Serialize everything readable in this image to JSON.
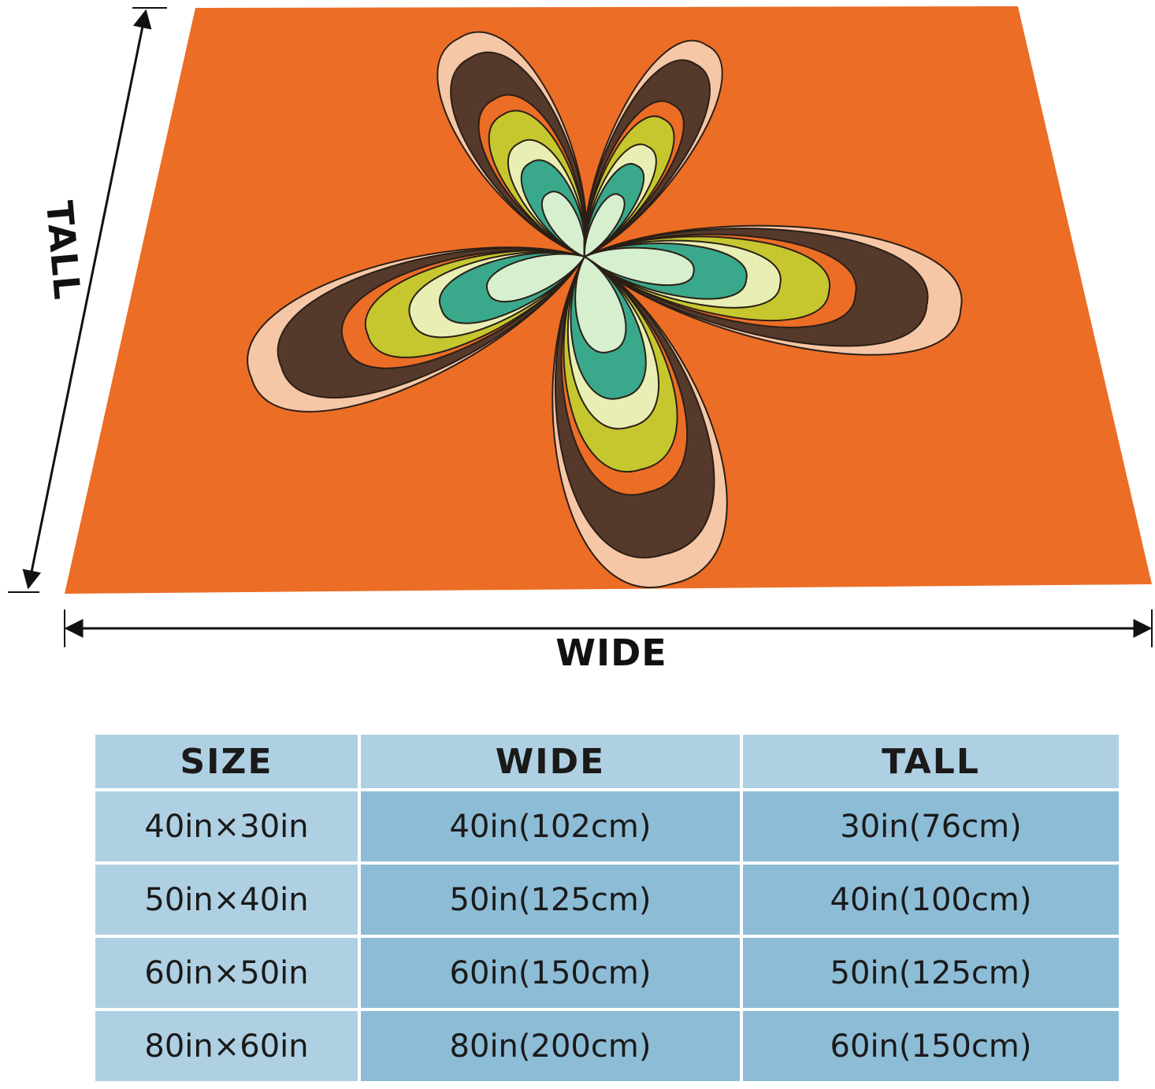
{
  "product": {
    "colors": {
      "background": "#ec6d26",
      "outline": "#2a1f17",
      "ring_peach": "#f6c7a6",
      "ring_brown": "#55392b",
      "ring_olive": "#c6c72f",
      "ring_pale_yellow": "#e9efb4",
      "ring_teal": "#3aa88b",
      "ring_mint": "#d6efcf"
    },
    "motif": "five-petal retro flower",
    "icon": "flower-icon"
  },
  "dimensions": {
    "wide_label": "WIDE",
    "tall_label": "TALL"
  },
  "size_table": {
    "headers": [
      "SIZE",
      "WIDE",
      "TALL"
    ],
    "rows": [
      [
        "40in×30in",
        "40in(102cm)",
        "30in(76cm)"
      ],
      [
        "50in×40in",
        "50in(125cm)",
        "40in(100cm)"
      ],
      [
        "60in×50in",
        "60in(150cm)",
        "50in(125cm)"
      ],
      [
        "80in×60in",
        "80in(200cm)",
        "60in(150cm)"
      ]
    ],
    "colors": {
      "header": "#afd0e3",
      "first_column": "#afd0e3",
      "cells": "#8dbcd6"
    }
  }
}
